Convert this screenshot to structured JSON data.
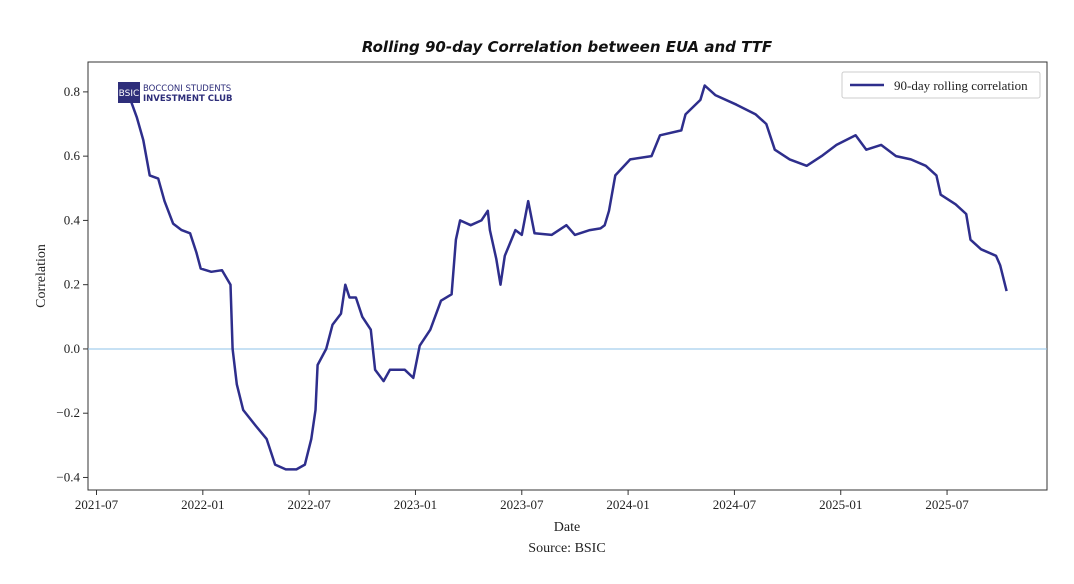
{
  "chart_data": {
    "type": "line",
    "title": "Rolling 90-day Correlation between EUA and TTF",
    "xlabel": "Date",
    "ylabel": "Correlation",
    "source": "Source: BSIC",
    "logo": {
      "badge": "BSIC",
      "line1": "BOCCONI STUDENTS",
      "line2": "INVESTMENT CLUB"
    },
    "xlim": [
      2021.46,
      2025.97
    ],
    "ylim": [
      -0.439,
      0.893
    ],
    "x_ticks": [
      {
        "v": 2021.5,
        "label": "2021-07"
      },
      {
        "v": 2022.0,
        "label": "2022-01"
      },
      {
        "v": 2022.5,
        "label": "2022-07"
      },
      {
        "v": 2023.0,
        "label": "2023-01"
      },
      {
        "v": 2023.5,
        "label": "2023-07"
      },
      {
        "v": 2024.0,
        "label": "2024-01"
      },
      {
        "v": 2024.5,
        "label": "2024-07"
      },
      {
        "v": 2025.0,
        "label": "2025-01"
      },
      {
        "v": 2025.5,
        "label": "2025-07"
      }
    ],
    "y_ticks": [
      {
        "v": 0.8,
        "label": "0.8"
      },
      {
        "v": 0.6,
        "label": "0.6"
      },
      {
        "v": 0.4,
        "label": "0.4"
      },
      {
        "v": 0.2,
        "label": "0.2"
      },
      {
        "v": 0.0,
        "label": "0.0"
      },
      {
        "v": -0.2,
        "label": "−0.2"
      },
      {
        "v": -0.4,
        "label": "−0.4"
      }
    ],
    "reference_line": {
      "y": 0.0,
      "color": "#8fc3ea"
    },
    "legend": {
      "position": "top-right"
    },
    "series": [
      {
        "name": "90-day rolling correlation",
        "color": "#2e2e8c",
        "x": [
          2021.61,
          2021.66,
          2021.69,
          2021.72,
          2021.75,
          2021.79,
          2021.82,
          2021.86,
          2021.9,
          2021.94,
          2021.97,
          2021.99,
          2022.04,
          2022.09,
          2022.13,
          2022.14,
          2022.16,
          2022.19,
          2022.25,
          2022.3,
          2022.34,
          2022.39,
          2022.44,
          2022.48,
          2022.51,
          2022.53,
          2022.54,
          2022.58,
          2022.61,
          2022.65,
          2022.67,
          2022.69,
          2022.72,
          2022.75,
          2022.79,
          2022.81,
          2022.85,
          2022.88,
          2022.95,
          2022.99,
          2023.02,
          2023.07,
          2023.12,
          2023.17,
          2023.19,
          2023.21,
          2023.26,
          2023.31,
          2023.34,
          2023.35,
          2023.38,
          2023.4,
          2023.42,
          2023.47,
          2023.5,
          2023.53,
          2023.56,
          2023.64,
          2023.71,
          2023.75,
          2023.82,
          2023.87,
          2023.89,
          2023.91,
          2023.94,
          2024.01,
          2024.11,
          2024.15,
          2024.25,
          2024.27,
          2024.34,
          2024.36,
          2024.41,
          2024.51,
          2024.6,
          2024.65,
          2024.69,
          2024.76,
          2024.84,
          2024.91,
          2024.98,
          2025.07,
          2025.12,
          2025.19,
          2025.26,
          2025.33,
          2025.4,
          2025.45,
          2025.47,
          2025.54,
          2025.59,
          2025.61,
          2025.66,
          2025.73,
          2025.75,
          2025.78
        ],
        "y": [
          0.82,
          0.775,
          0.72,
          0.65,
          0.54,
          0.53,
          0.46,
          0.39,
          0.37,
          0.36,
          0.3,
          0.25,
          0.24,
          0.245,
          0.2,
          0.0,
          -0.11,
          -0.19,
          -0.24,
          -0.28,
          -0.36,
          -0.375,
          -0.375,
          -0.36,
          -0.28,
          -0.19,
          -0.05,
          0.0,
          0.075,
          0.11,
          0.2,
          0.16,
          0.16,
          0.1,
          0.06,
          -0.065,
          -0.1,
          -0.065,
          -0.065,
          -0.09,
          0.01,
          0.06,
          0.15,
          0.17,
          0.34,
          0.4,
          0.385,
          0.4,
          0.43,
          0.37,
          0.28,
          0.2,
          0.29,
          0.37,
          0.355,
          0.46,
          0.36,
          0.355,
          0.385,
          0.355,
          0.37,
          0.375,
          0.385,
          0.43,
          0.54,
          0.59,
          0.6,
          0.665,
          0.68,
          0.73,
          0.775,
          0.82,
          0.79,
          0.76,
          0.73,
          0.7,
          0.62,
          0.59,
          0.57,
          0.6,
          0.635,
          0.665,
          0.62,
          0.635,
          0.6,
          0.59,
          0.57,
          0.54,
          0.48,
          0.45,
          0.42,
          0.34,
          0.31,
          0.29,
          0.26,
          0.18
        ]
      }
    ]
  }
}
